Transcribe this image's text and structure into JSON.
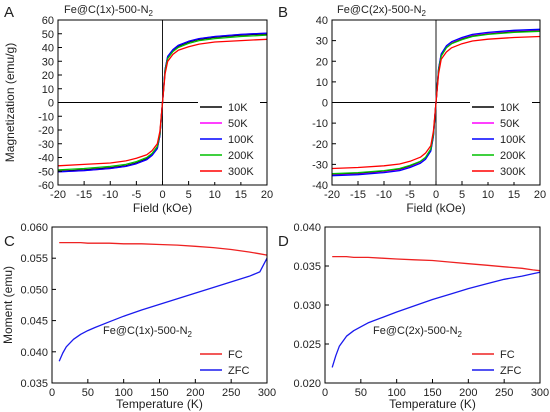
{
  "colors": {
    "10K": "#000000",
    "50K": "#ff00ff",
    "100K": "#0000ff",
    "200K": "#00c000",
    "300K": "#ff0000",
    "FC": "#ee2222",
    "ZFC": "#1a1aee"
  },
  "chart_data": [
    {
      "panel": "A",
      "type": "line",
      "title_parts": [
        "Fe@C(1x)-500-N",
        "2"
      ],
      "xlabel": "Field (kOe)",
      "ylabel": "Magnetization (emu/g)",
      "xlim": [
        -20,
        20
      ],
      "ylim": [
        -60,
        60
      ],
      "xticks": [
        -20,
        -15,
        -10,
        -5,
        0,
        5,
        10,
        15,
        20
      ],
      "yticks": [
        -60,
        -50,
        -40,
        -30,
        -20,
        -10,
        0,
        10,
        20,
        30,
        40,
        50,
        60
      ],
      "grid": false,
      "zero_lines": true,
      "legend_position": "bottom-right",
      "x": [
        -20,
        -15,
        -10,
        -7,
        -5,
        -3,
        -2,
        -1,
        -0.5,
        0,
        0.5,
        1,
        2,
        3,
        5,
        7,
        10,
        15,
        20
      ],
      "series": [
        {
          "name": "10K",
          "values": [
            -50,
            -49,
            -47.5,
            -46,
            -44,
            -41,
            -38,
            -33,
            -24,
            0,
            24,
            33,
            38,
            41,
            44,
            46,
            47.5,
            49,
            50
          ]
        },
        {
          "name": "50K",
          "values": [
            -50.5,
            -49.5,
            -48,
            -46.5,
            -44.5,
            -41.5,
            -38.5,
            -33.5,
            -24,
            0,
            24,
            33.5,
            38.5,
            41.5,
            44.5,
            46.5,
            48,
            49.5,
            50.5
          ]
        },
        {
          "name": "100K",
          "values": [
            -50.5,
            -49.5,
            -48,
            -46.5,
            -44.5,
            -41.5,
            -38.5,
            -33.5,
            -24,
            0,
            24,
            33.5,
            38.5,
            41.5,
            44.5,
            46.5,
            48,
            49.5,
            50.5
          ]
        },
        {
          "name": "200K",
          "values": [
            -49,
            -48,
            -46.5,
            -45,
            -43,
            -40,
            -37,
            -32,
            -23,
            0,
            23,
            32,
            37,
            40,
            43,
            45,
            46.5,
            48,
            49
          ]
        },
        {
          "name": "300K",
          "values": [
            -46,
            -45,
            -44,
            -42.5,
            -40.5,
            -38,
            -35,
            -30,
            -21,
            0,
            21,
            30,
            35,
            38,
            40.5,
            42.5,
            44,
            45,
            46
          ]
        }
      ]
    },
    {
      "panel": "B",
      "type": "line",
      "title_parts": [
        "Fe@C(2x)-500-N",
        "2"
      ],
      "xlabel": "Field (kOe)",
      "ylabel": "",
      "xlim": [
        -20,
        20
      ],
      "ylim": [
        -40,
        40
      ],
      "xticks": [
        -20,
        -15,
        -10,
        -5,
        0,
        5,
        10,
        15,
        20
      ],
      "yticks": [
        -40,
        -30,
        -20,
        -10,
        0,
        10,
        20,
        30,
        40
      ],
      "grid": false,
      "zero_lines": true,
      "legend_position": "bottom-right",
      "x": [
        -20,
        -15,
        -10,
        -7,
        -5,
        -3,
        -2,
        -1,
        -0.5,
        0,
        0.5,
        1,
        2,
        3,
        5,
        7,
        10,
        15,
        20
      ],
      "series": [
        {
          "name": "10K",
          "values": [
            -35,
            -34.5,
            -33.5,
            -32.5,
            -31,
            -29,
            -27,
            -23,
            -16,
            0,
            16,
            23,
            27,
            29,
            31,
            32.5,
            33.5,
            34.5,
            35
          ]
        },
        {
          "name": "50K",
          "values": [
            -35.3,
            -34.8,
            -33.8,
            -32.8,
            -31.3,
            -29.3,
            -27.3,
            -23.3,
            -16,
            0,
            16,
            23.3,
            27.3,
            29.3,
            31.3,
            32.8,
            33.8,
            34.8,
            35.3
          ]
        },
        {
          "name": "100K",
          "values": [
            -35.5,
            -35,
            -34,
            -33,
            -31.5,
            -29.5,
            -27.5,
            -23.5,
            -16.5,
            0,
            16.5,
            23.5,
            27.5,
            29.5,
            31.5,
            33,
            34,
            35,
            35.5
          ]
        },
        {
          "name": "200K",
          "values": [
            -34.5,
            -34,
            -33,
            -32,
            -30.5,
            -28.5,
            -26.5,
            -22.5,
            -15.5,
            0,
            15.5,
            22.5,
            26.5,
            28.5,
            30.5,
            32,
            33,
            34,
            34.5
          ]
        },
        {
          "name": "300K",
          "values": [
            -32,
            -31.5,
            -30.7,
            -29.8,
            -28.5,
            -26.5,
            -24.5,
            -21,
            -14,
            0,
            14,
            21,
            24.5,
            26.5,
            28.5,
            29.8,
            30.7,
            31.5,
            32
          ]
        }
      ]
    },
    {
      "panel": "C",
      "type": "line",
      "title_parts": [
        "Fe@C(1x)-500-N",
        "2"
      ],
      "xlabel": "Temperature (K)",
      "ylabel": "Moment (emu)",
      "xlim": [
        0,
        300
      ],
      "ylim": [
        0.035,
        0.06
      ],
      "xticks": [
        0,
        50,
        100,
        150,
        200,
        250,
        300
      ],
      "yticks": [
        0.035,
        0.04,
        0.045,
        0.05,
        0.055,
        0.06
      ],
      "ytick_labels": [
        "0.035",
        "0.040",
        "0.045",
        "0.050",
        "0.055",
        "0.060"
      ],
      "grid": false,
      "zero_lines": false,
      "legend_position": "bottom-right",
      "x": [
        10,
        15,
        20,
        30,
        40,
        50,
        60,
        80,
        100,
        125,
        150,
        175,
        200,
        225,
        250,
        275,
        290,
        300
      ],
      "series": [
        {
          "name": "FC",
          "values": [
            0.0575,
            0.0575,
            0.0575,
            0.0575,
            0.0575,
            0.0574,
            0.0574,
            0.0574,
            0.0573,
            0.0573,
            0.0572,
            0.0571,
            0.0569,
            0.0567,
            0.0564,
            0.056,
            0.0557,
            0.0555
          ]
        },
        {
          "name": "ZFC",
          "values": [
            0.0385,
            0.0398,
            0.0408,
            0.042,
            0.0428,
            0.0434,
            0.0439,
            0.0448,
            0.0457,
            0.0467,
            0.0476,
            0.0485,
            0.0494,
            0.0503,
            0.0512,
            0.0521,
            0.0528,
            0.055
          ]
        }
      ]
    },
    {
      "panel": "D",
      "type": "line",
      "title_parts": [
        "Fe@C(2x)-500-N",
        "2"
      ],
      "xlabel": "Temperature (K)",
      "ylabel": "",
      "xlim": [
        0,
        300
      ],
      "ylim": [
        0.02,
        0.04
      ],
      "xticks": [
        0,
        50,
        100,
        150,
        200,
        250,
        300
      ],
      "yticks": [
        0.02,
        0.025,
        0.03,
        0.035,
        0.04
      ],
      "ytick_labels": [
        "0.020",
        "0.025",
        "0.030",
        "0.035",
        "0.040"
      ],
      "grid": false,
      "zero_lines": false,
      "legend_position": "bottom-right",
      "x": [
        10,
        15,
        20,
        30,
        40,
        50,
        60,
        80,
        100,
        125,
        150,
        175,
        200,
        225,
        250,
        275,
        290,
        300
      ],
      "series": [
        {
          "name": "FC",
          "values": [
            0.0362,
            0.0362,
            0.0362,
            0.0362,
            0.0361,
            0.0361,
            0.0361,
            0.036,
            0.0359,
            0.0358,
            0.0357,
            0.0355,
            0.0353,
            0.0351,
            0.0349,
            0.0347,
            0.0345,
            0.0344
          ]
        },
        {
          "name": "ZFC",
          "values": [
            0.022,
            0.0235,
            0.0247,
            0.026,
            0.0267,
            0.0272,
            0.0277,
            0.0284,
            0.0291,
            0.0299,
            0.0307,
            0.0314,
            0.0321,
            0.0327,
            0.0333,
            0.0337,
            0.034,
            0.0342
          ]
        }
      ]
    }
  ]
}
